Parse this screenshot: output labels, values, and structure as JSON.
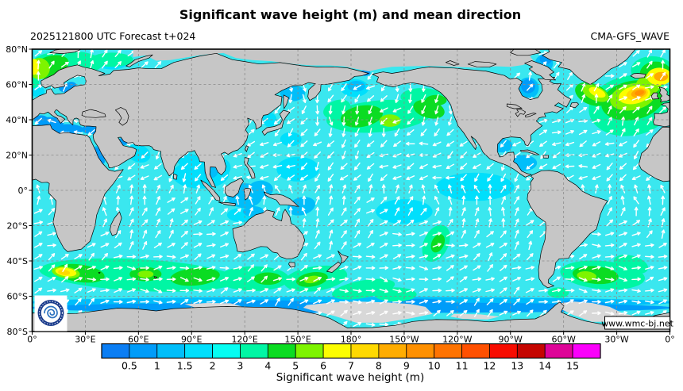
{
  "header": {
    "title": "Significant wave height (m) and mean direction",
    "run_label": "2025121800 UTC Forecast t+024",
    "model_label": "CMA-GFS_WAVE"
  },
  "map": {
    "watermark": "www.wmc-bj.net",
    "logo": "CMA emblem",
    "ocean_base_color": "#3AE7EF",
    "land_color": "#C6C6C6",
    "ice_color": "#D8D8D8",
    "coast_color": "#000000",
    "grid_color": "#8A8A8A",
    "arrow_color": "#FFFFFF"
  },
  "axes": {
    "lat_labels": [
      "80°N",
      "60°N",
      "40°N",
      "20°N",
      "0°",
      "20°S",
      "40°S",
      "60°S",
      "80°S"
    ],
    "lat_values": [
      80,
      60,
      40,
      20,
      0,
      -20,
      -40,
      -60,
      -80
    ],
    "lon_labels": [
      "0°",
      "30°E",
      "60°E",
      "90°E",
      "120°E",
      "150°E",
      "180°",
      "150°W",
      "120°W",
      "90°W",
      "60°W",
      "30°W",
      "0°"
    ],
    "lon_values": [
      0,
      30,
      60,
      90,
      120,
      150,
      180,
      210,
      240,
      270,
      300,
      330,
      360
    ]
  },
  "colorbar": {
    "title": "Significant wave height (m)",
    "tick_labels": [
      "0.5",
      "1",
      "1.5",
      "2",
      "3",
      "4",
      "5",
      "6",
      "7",
      "8",
      "9",
      "10",
      "11",
      "12",
      "13",
      "14",
      "15"
    ],
    "colors": [
      "#0B7EF4",
      "#009CF9",
      "#00BEFA",
      "#00DFFC",
      "#06FDF2",
      "#00F6A4",
      "#0BDC22",
      "#7EF400",
      "#FCFD00",
      "#FFD900",
      "#FFAC00",
      "#FF9000",
      "#FF7300",
      "#FF5000",
      "#F70C00",
      "#C50500",
      "#DE0498",
      "#FB00FB"
    ]
  },
  "chart_data": {
    "type": "heatmap",
    "title": "Significant wave height (m) and mean direction",
    "model": "CMA-GFS_WAVE",
    "init_time": "2025121800 UTC",
    "lead_time": "t+024",
    "units": "m",
    "projection": "equirectangular",
    "lon_range_deg_east": [
      0,
      360
    ],
    "lat_range": [
      -80,
      80
    ],
    "grid_spacing": {
      "lon_deg": 30,
      "lat_deg": 20
    },
    "levels_m": [
      0.5,
      1,
      1.5,
      2,
      3,
      4,
      5,
      6,
      7,
      8,
      9,
      10,
      11,
      12,
      13,
      14,
      15
    ],
    "palette_levels": [
      {
        "range": "<0.5",
        "color": "#0B7EF4"
      },
      {
        "range": "0.5-1",
        "color": "#009CF9"
      },
      {
        "range": "1-1.5",
        "color": "#00BEFA"
      },
      {
        "range": "1.5-2",
        "color": "#00DFFC"
      },
      {
        "range": "2-3",
        "color": "#06FDF2"
      },
      {
        "range": "3-4",
        "color": "#00F6A4"
      },
      {
        "range": "4-5",
        "color": "#0BDC22"
      },
      {
        "range": "5-6",
        "color": "#7EF400"
      },
      {
        "range": "6-7",
        "color": "#FCFD00"
      },
      {
        "range": "7-8",
        "color": "#FFD900"
      },
      {
        "range": "8-9",
        "color": "#FFAC00"
      },
      {
        "range": "9-10",
        "color": "#FF9000"
      },
      {
        "range": "10-11",
        "color": "#FF7300"
      },
      {
        "range": "11-12",
        "color": "#FF5000"
      },
      {
        "range": "12-13",
        "color": "#F70C00"
      },
      {
        "range": "13-14",
        "color": "#C50500"
      },
      {
        "range": "14-15",
        "color": "#DE0498"
      },
      {
        "range": ">15",
        "color": "#FB00FB"
      }
    ],
    "arrow_meaning": "white arrows = mean wave direction",
    "features": [
      {
        "region": "North Atlantic storm south of Iceland (~20W-10W, 50-58N)",
        "peak_m": "9-10",
        "direction": "E/NE"
      },
      {
        "region": "NE Atlantic / Norwegian Sea approach (top-right corner, ~5W-0, 60-68N)",
        "peak_m": "8-9"
      },
      {
        "region": "Norwegian Sea near 0-5E, 64-72N",
        "peak_m": "6-7",
        "direction": "NE"
      },
      {
        "region": "Labrador Sea lobe (~45W, 53-57N)",
        "peak_m": "6-7"
      },
      {
        "region": "Central North Pacific (~160W, 38-42N)",
        "peak_m": "5-6",
        "direction": "S/SW"
      },
      {
        "region": "South Indian Ocean south of Africa (10-25E, 44-50S)",
        "peak_m": "7-8",
        "direction": "E/NE"
      },
      {
        "region": "South Indian Ocean (55-75E, 45-50S)",
        "peak_m": "5-6"
      },
      {
        "region": "South of New Zealand (150-165E, 48-53S)",
        "peak_m": "5-6"
      },
      {
        "region": "South Atlantic east of Argentina (~50W, 45-52S)",
        "peak_m": "5-6"
      },
      {
        "region": "SE Pacific diagonal band (120-140W, 20-40S)",
        "peak_m": "4-5"
      },
      {
        "region": "Tropical oceans",
        "typical_m": "1.5-3"
      },
      {
        "region": "Mediterranean, Baltic, Red Sea, Persian Gulf, Hudson Bay, Bering Strait",
        "typical_m": "0.5-1.5"
      },
      {
        "region": "Antarctic coastal band",
        "typical_m": "0.5-1.5 with grey sea-ice patches"
      }
    ],
    "patches": [
      [
        95,
        9,
        16,
        8,
        0,
        3
      ],
      [
        60,
        21,
        7,
        5,
        20,
        3
      ],
      [
        88,
        17,
        6,
        4,
        0,
        3
      ],
      [
        150,
        12,
        12,
        7,
        0,
        3
      ],
      [
        250,
        2,
        22,
        8,
        0,
        3
      ],
      [
        210,
        -12,
        16,
        7,
        0,
        3
      ],
      [
        118,
        -14,
        8,
        4,
        0,
        3
      ],
      [
        146,
        29,
        6,
        4,
        0,
        3
      ],
      [
        134,
        40,
        4,
        4,
        0,
        3
      ],
      [
        3,
        56,
        4,
        3,
        0,
        3
      ],
      [
        45,
        72.5,
        9,
        4,
        0,
        3
      ],
      [
        107,
        13,
        5,
        5,
        0,
        3
      ],
      [
        182,
        58,
        8,
        5,
        0,
        3
      ],
      [
        120,
        -3,
        10,
        7,
        0,
        2
      ],
      [
        129,
        0.5,
        7,
        5,
        0,
        2
      ],
      [
        152,
        -9,
        8,
        5,
        -15,
        2
      ],
      [
        265,
        25.5,
        6,
        4,
        0,
        2
      ],
      [
        277,
        15.5,
        8,
        4.5,
        0,
        2
      ],
      [
        280,
        58,
        6,
        6,
        0,
        2
      ],
      [
        183,
        59,
        5,
        3,
        0,
        2
      ],
      [
        289,
        72,
        5,
        5,
        0,
        2
      ],
      [
        147,
        55,
        7,
        4.5,
        0,
        2
      ],
      [
        101,
        11,
        4,
        4,
        0,
        2
      ],
      [
        125,
        -12,
        6,
        3,
        0,
        2
      ],
      [
        38,
        20,
        2.5,
        5.5,
        -25,
        2
      ],
      [
        180,
        -63.5,
        182,
        3.2,
        0,
        2
      ],
      [
        180,
        -66.5,
        182,
        3,
        0,
        1
      ],
      [
        310,
        -65,
        14,
        3,
        0,
        1
      ],
      [
        135,
        -64.5,
        25,
        2.2,
        0,
        1
      ],
      [
        220,
        -64,
        18,
        2.5,
        0,
        1
      ],
      [
        280,
        59,
        4,
        4,
        0,
        1
      ],
      [
        290,
        74.5,
        3.5,
        3,
        0,
        1
      ],
      [
        188,
        66.5,
        3,
        1.7,
        0,
        1
      ],
      [
        19,
        58,
        4,
        2.5,
        0,
        1
      ],
      [
        22,
        59.5,
        3,
        2,
        0,
        1
      ],
      [
        10,
        38.5,
        8,
        3,
        0,
        1
      ],
      [
        20,
        34.5,
        9,
        3,
        0,
        1
      ],
      [
        33,
        34.5,
        5,
        2.5,
        0,
        1
      ],
      [
        51,
        27.5,
        3.2,
        2,
        0,
        1
      ],
      [
        38,
        19.5,
        2,
        5,
        -25,
        1
      ],
      [
        5,
        40,
        4,
        2.5,
        0,
        1
      ],
      [
        20,
        72,
        20,
        7,
        0,
        5
      ],
      [
        1,
        62,
        3,
        4,
        0,
        5
      ],
      [
        45,
        74,
        12,
        4,
        0,
        5
      ],
      [
        10,
        70,
        11,
        6,
        -18,
        6
      ],
      [
        4,
        69,
        6,
        6,
        -20,
        7
      ],
      [
        1,
        70,
        3,
        4.5,
        0,
        8
      ],
      [
        196,
        42,
        30,
        9,
        -5,
        5
      ],
      [
        172,
        46,
        8,
        5,
        -20,
        5
      ],
      [
        220,
        53,
        12,
        5,
        0,
        5
      ],
      [
        186,
        42,
        12,
        6,
        -10,
        6
      ],
      [
        224,
        46,
        9,
        5,
        15,
        6
      ],
      [
        228,
        51,
        6,
        3,
        0,
        6
      ],
      [
        202,
        39.5,
        6,
        3.5,
        0,
        7
      ],
      [
        338,
        48,
        24,
        17,
        -10,
        5
      ],
      [
        350,
        68,
        12,
        8,
        0,
        5
      ],
      [
        339,
        51,
        18,
        11,
        -12,
        6
      ],
      [
        352,
        66,
        9,
        7,
        0,
        6
      ],
      [
        316,
        54.5,
        10,
        6,
        22,
        6
      ],
      [
        339,
        53,
        13,
        7.5,
        -12,
        7
      ],
      [
        318,
        55,
        8,
        4,
        24,
        7
      ],
      [
        348,
        60,
        8,
        6,
        -30,
        7
      ],
      [
        340,
        54,
        9,
        5,
        -12,
        8
      ],
      [
        354,
        64.5,
        7,
        5,
        0,
        8
      ],
      [
        319,
        55.5,
        5,
        2.4,
        24,
        8
      ],
      [
        341.5,
        54.6,
        6.2,
        3.4,
        -12,
        9
      ],
      [
        342.3,
        55,
        4.2,
        2.3,
        -12,
        10
      ],
      [
        355,
        64.5,
        4,
        2.6,
        0,
        10
      ],
      [
        342.8,
        55.3,
        2.7,
        1.4,
        -12,
        11
      ],
      [
        60,
        -48,
        56,
        9,
        3,
        5
      ],
      [
        125,
        -50,
        20,
        7,
        0,
        5
      ],
      [
        160,
        -50,
        18,
        7,
        -8,
        5
      ],
      [
        187,
        -56,
        18,
        5,
        -10,
        5
      ],
      [
        205,
        -59,
        12,
        4,
        0,
        5
      ],
      [
        228,
        -30,
        7,
        11,
        25,
        5
      ],
      [
        322,
        -48,
        24,
        8,
        5,
        5
      ],
      [
        297,
        -58,
        6,
        3,
        0,
        5
      ],
      [
        338,
        -42,
        10,
        5,
        15,
        5
      ],
      [
        27,
        -47,
        14,
        5,
        8,
        6
      ],
      [
        64,
        -47.5,
        9,
        4,
        0,
        6
      ],
      [
        92,
        -49,
        14,
        5,
        -5,
        6
      ],
      [
        133,
        -50,
        8,
        3.5,
        0,
        6
      ],
      [
        158,
        -50.5,
        9,
        4,
        -10,
        6
      ],
      [
        229,
        -30,
        3.5,
        5.5,
        25,
        6
      ],
      [
        318,
        -48,
        13,
        5,
        5,
        6
      ],
      [
        19,
        -46.5,
        8,
        3.2,
        8,
        7
      ],
      [
        64,
        -47.5,
        4.5,
        2,
        0,
        7
      ],
      [
        158,
        -50.5,
        4.5,
        2,
        -10,
        7
      ],
      [
        313,
        -48.5,
        5.5,
        2.6,
        5,
        7
      ],
      [
        19,
        -46.3,
        6,
        2.4,
        8,
        8
      ],
      [
        18,
        -46.5,
        3.4,
        1.5,
        8,
        9
      ]
    ]
  }
}
